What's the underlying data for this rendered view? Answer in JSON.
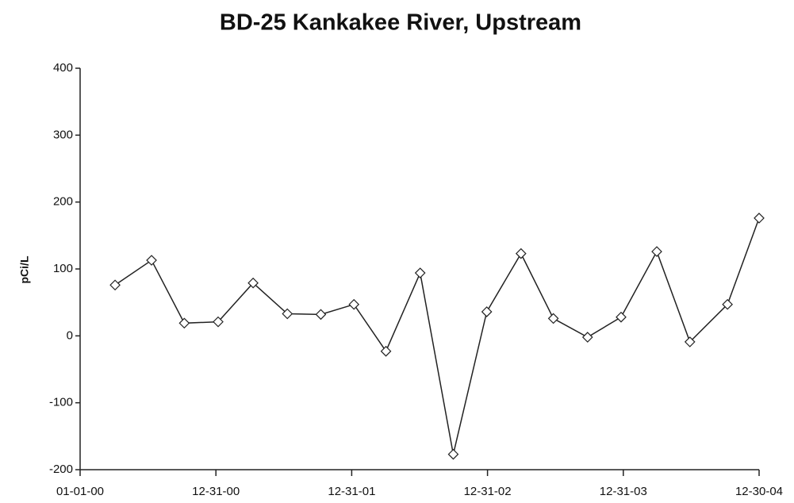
{
  "chart_data": {
    "type": "line",
    "title": "BD-25  Kankakee River, Upstream",
    "y_label": "pCi/L",
    "x": [
      "2000-04-04",
      "2000-07-11",
      "2000-10-07",
      "2001-01-06",
      "2001-04-10",
      "2001-07-11",
      "2001-10-09",
      "2002-01-06",
      "2002-04-02",
      "2002-07-03",
      "2002-09-30",
      "2002-12-29",
      "2003-03-31",
      "2003-06-26",
      "2003-09-26",
      "2003-12-25",
      "2004-03-30",
      "2004-06-27",
      "2004-10-06",
      "2004-12-30"
    ],
    "series": [
      {
        "color": "#222222",
        "values": [
          76,
          113,
          19,
          21,
          79,
          33,
          32,
          47,
          -23,
          94,
          -177,
          36,
          123,
          26,
          -2,
          28,
          126,
          -9,
          47,
          176
        ]
      }
    ],
    "xlim": [
      "2000-01-01",
      "2004-12-30"
    ],
    "xticks": [
      {
        "value": "2000-01-01",
        "label": "01-01-00"
      },
      {
        "value": "2000-12-31",
        "label": "12-31-00"
      },
      {
        "value": "2001-12-31",
        "label": "12-31-01"
      },
      {
        "value": "2002-12-31",
        "label": "12-31-02"
      },
      {
        "value": "2003-12-31",
        "label": "12-31-03"
      },
      {
        "value": "2004-12-30",
        "label": "12-30-04"
      }
    ],
    "ylim": [
      -200,
      400
    ],
    "yticks": [
      -200,
      -100,
      0,
      100,
      200,
      300,
      400
    ],
    "grid": false
  }
}
